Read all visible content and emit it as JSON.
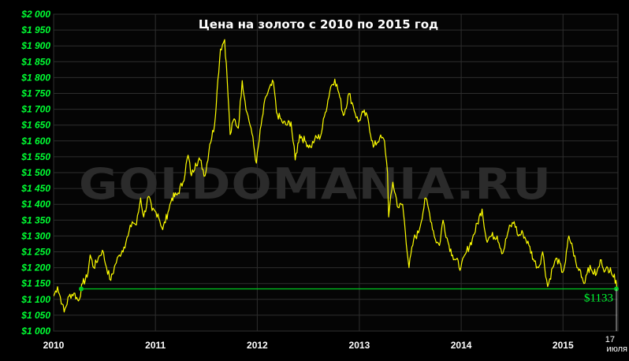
{
  "chart_data": {
    "type": "line",
    "title": "Цена на золото с 2010 по 2015 год",
    "watermark": "GOLDOMANIA.RU",
    "x_range": [
      "2010-01-01",
      "2015-07-17"
    ],
    "ylim": [
      1000,
      2000
    ],
    "y_ticks": [
      {
        "value": 2000,
        "label": "$2 000"
      },
      {
        "value": 1950,
        "label": "$1 950"
      },
      {
        "value": 1900,
        "label": "$1 900"
      },
      {
        "value": 1850,
        "label": "$1 850"
      },
      {
        "value": 1800,
        "label": "$1 800"
      },
      {
        "value": 1750,
        "label": "$1 750"
      },
      {
        "value": 1700,
        "label": "$1 700"
      },
      {
        "value": 1650,
        "label": "$1 650"
      },
      {
        "value": 1600,
        "label": "$1 600"
      },
      {
        "value": 1550,
        "label": "$1 550"
      },
      {
        "value": 1500,
        "label": "$1 500"
      },
      {
        "value": 1450,
        "label": "$1 450"
      },
      {
        "value": 1400,
        "label": "$1 400"
      },
      {
        "value": 1350,
        "label": "$1 350"
      },
      {
        "value": 1300,
        "label": "$1 300"
      },
      {
        "value": 1250,
        "label": "$1 250"
      },
      {
        "value": 1200,
        "label": "$1 200"
      },
      {
        "value": 1150,
        "label": "$1 150"
      },
      {
        "value": 1100,
        "label": "$1 100"
      },
      {
        "value": 1050,
        "label": "$1 050"
      },
      {
        "value": 1000,
        "label": "$1 000"
      }
    ],
    "x_ticks": [
      {
        "date": "2010-01-01",
        "label": "2010"
      },
      {
        "date": "2011-01-01",
        "label": "2011"
      },
      {
        "date": "2012-01-01",
        "label": "2012"
      },
      {
        "date": "2013-01-01",
        "label": "2013"
      },
      {
        "date": "2014-01-01",
        "label": "2014"
      },
      {
        "date": "2015-01-01",
        "label": "2015"
      }
    ],
    "end_date_label": [
      "17",
      "июля"
    ],
    "grid": true,
    "series": [
      {
        "color": "#ffff00",
        "points": [
          [
            "2010-01-01",
            1110
          ],
          [
            "2010-01-15",
            1140
          ],
          [
            "2010-02-01",
            1085
          ],
          [
            "2010-02-08",
            1060
          ],
          [
            "2010-02-25",
            1110
          ],
          [
            "2010-03-15",
            1120
          ],
          [
            "2010-03-31",
            1095
          ],
          [
            "2010-04-15",
            1150
          ],
          [
            "2010-05-01",
            1170
          ],
          [
            "2010-05-12",
            1240
          ],
          [
            "2010-05-25",
            1200
          ],
          [
            "2010-06-10",
            1230
          ],
          [
            "2010-06-25",
            1255
          ],
          [
            "2010-07-10",
            1200
          ],
          [
            "2010-07-25",
            1160
          ],
          [
            "2010-08-10",
            1210
          ],
          [
            "2010-08-25",
            1240
          ],
          [
            "2010-09-10",
            1265
          ],
          [
            "2010-09-25",
            1300
          ],
          [
            "2010-10-10",
            1345
          ],
          [
            "2010-10-25",
            1335
          ],
          [
            "2010-11-09",
            1420
          ],
          [
            "2010-11-20",
            1360
          ],
          [
            "2010-12-07",
            1425
          ],
          [
            "2010-12-20",
            1380
          ],
          [
            "2011-01-10",
            1370
          ],
          [
            "2011-01-27",
            1320
          ],
          [
            "2011-02-15",
            1375
          ],
          [
            "2011-03-01",
            1420
          ],
          [
            "2011-03-20",
            1430
          ],
          [
            "2011-04-10",
            1470
          ],
          [
            "2011-04-28",
            1555
          ],
          [
            "2011-05-10",
            1490
          ],
          [
            "2011-05-25",
            1530
          ],
          [
            "2011-06-10",
            1540
          ],
          [
            "2011-06-28",
            1490
          ],
          [
            "2011-07-15",
            1590
          ],
          [
            "2011-08-01",
            1650
          ],
          [
            "2011-08-10",
            1760
          ],
          [
            "2011-08-22",
            1890
          ],
          [
            "2011-09-06",
            1920
          ],
          [
            "2011-09-15",
            1800
          ],
          [
            "2011-09-26",
            1620
          ],
          [
            "2011-10-10",
            1670
          ],
          [
            "2011-10-25",
            1640
          ],
          [
            "2011-11-08",
            1790
          ],
          [
            "2011-11-25",
            1690
          ],
          [
            "2011-12-10",
            1640
          ],
          [
            "2011-12-29",
            1530
          ],
          [
            "2012-01-15",
            1650
          ],
          [
            "2012-02-01",
            1740
          ],
          [
            "2012-02-28",
            1785
          ],
          [
            "2012-03-10",
            1690
          ],
          [
            "2012-03-30",
            1660
          ],
          [
            "2012-04-15",
            1650
          ],
          [
            "2012-05-01",
            1660
          ],
          [
            "2012-05-16",
            1540
          ],
          [
            "2012-06-01",
            1620
          ],
          [
            "2012-06-20",
            1600
          ],
          [
            "2012-07-10",
            1580
          ],
          [
            "2012-07-25",
            1605
          ],
          [
            "2012-08-15",
            1615
          ],
          [
            "2012-09-01",
            1690
          ],
          [
            "2012-09-20",
            1770
          ],
          [
            "2012-10-05",
            1795
          ],
          [
            "2012-10-20",
            1750
          ],
          [
            "2012-11-05",
            1680
          ],
          [
            "2012-11-25",
            1750
          ],
          [
            "2012-12-10",
            1710
          ],
          [
            "2012-12-28",
            1660
          ],
          [
            "2013-01-15",
            1690
          ],
          [
            "2013-02-01",
            1670
          ],
          [
            "2013-02-20",
            1580
          ],
          [
            "2013-03-15",
            1610
          ],
          [
            "2013-04-01",
            1600
          ],
          [
            "2013-04-12",
            1500
          ],
          [
            "2013-04-16",
            1360
          ],
          [
            "2013-05-01",
            1470
          ],
          [
            "2013-05-20",
            1390
          ],
          [
            "2013-06-05",
            1400
          ],
          [
            "2013-06-28",
            1200
          ],
          [
            "2013-07-15",
            1290
          ],
          [
            "2013-08-01",
            1310
          ],
          [
            "2013-08-27",
            1420
          ],
          [
            "2013-09-10",
            1370
          ],
          [
            "2013-09-30",
            1290
          ],
          [
            "2013-10-15",
            1270
          ],
          [
            "2013-10-28",
            1350
          ],
          [
            "2013-11-15",
            1280
          ],
          [
            "2013-12-01",
            1240
          ],
          [
            "2013-12-31",
            1200
          ],
          [
            "2014-01-20",
            1250
          ],
          [
            "2014-02-10",
            1290
          ],
          [
            "2014-03-17",
            1385
          ],
          [
            "2014-04-01",
            1290
          ],
          [
            "2014-04-20",
            1300
          ],
          [
            "2014-05-10",
            1300
          ],
          [
            "2014-05-30",
            1245
          ],
          [
            "2014-06-20",
            1320
          ],
          [
            "2014-07-10",
            1345
          ],
          [
            "2014-07-25",
            1300
          ],
          [
            "2014-08-10",
            1310
          ],
          [
            "2014-09-01",
            1270
          ],
          [
            "2014-09-20",
            1220
          ],
          [
            "2014-10-05",
            1200
          ],
          [
            "2014-10-20",
            1250
          ],
          [
            "2014-11-07",
            1140
          ],
          [
            "2014-11-25",
            1200
          ],
          [
            "2014-12-10",
            1230
          ],
          [
            "2014-12-31",
            1185
          ],
          [
            "2015-01-10",
            1220
          ],
          [
            "2015-01-22",
            1300
          ],
          [
            "2015-02-05",
            1260
          ],
          [
            "2015-02-20",
            1200
          ],
          [
            "2015-03-05",
            1190
          ],
          [
            "2015-03-17",
            1150
          ],
          [
            "2015-04-01",
            1200
          ],
          [
            "2015-04-15",
            1190
          ],
          [
            "2015-05-01",
            1180
          ],
          [
            "2015-05-18",
            1225
          ],
          [
            "2015-06-01",
            1190
          ],
          [
            "2015-06-20",
            1200
          ],
          [
            "2015-07-01",
            1170
          ],
          [
            "2015-07-10",
            1160
          ],
          [
            "2015-07-17",
            1133
          ]
        ]
      }
    ],
    "reference_line": {
      "value": 1133,
      "color": "#00cc22",
      "start_date": "2010-04-10",
      "label": "$1133"
    }
  }
}
